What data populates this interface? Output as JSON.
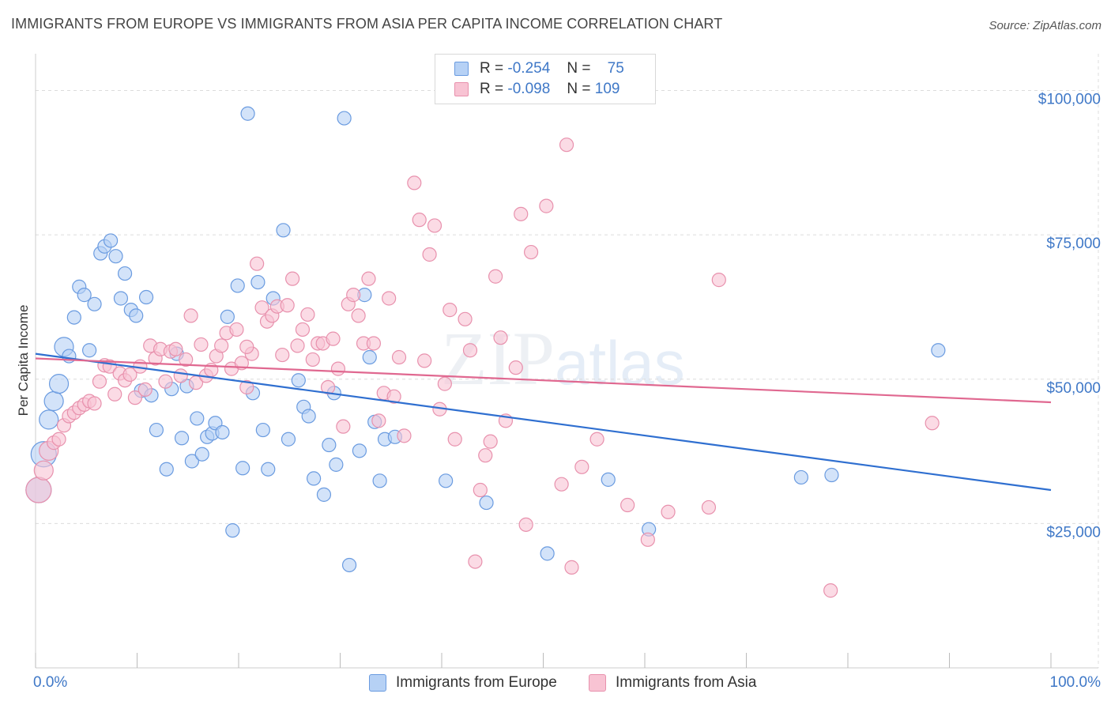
{
  "header": {
    "title": "IMMIGRANTS FROM EUROPE VS IMMIGRANTS FROM ASIA PER CAPITA INCOME CORRELATION CHART",
    "source": "Source: ZipAtlas.com"
  },
  "watermark": {
    "zip": "ZIP",
    "atlas": "atlas"
  },
  "legend": {
    "europe": {
      "r_label": "R =",
      "r_value": "-0.254",
      "n_label": "N =",
      "n_value": "75"
    },
    "asia": {
      "r_label": "R =",
      "r_value": "-0.098",
      "n_label": "N =",
      "n_value": "109"
    }
  },
  "colors": {
    "europe_fill": "#b6d1f5",
    "europe_stroke": "#6a9be0",
    "europe_line": "#2f6fd0",
    "asia_fill": "#f8c3d3",
    "asia_stroke": "#e891ad",
    "asia_line": "#e06890",
    "grid": "#dcdcdc",
    "axis_text": "#3f78c7"
  },
  "chart_data": {
    "type": "scatter",
    "title": "IMMIGRANTS FROM EUROPE VS IMMIGRANTS FROM ASIA PER CAPITA INCOME CORRELATION CHART",
    "xlabel": "",
    "ylabel": "Per Capita Income",
    "xlim": [
      0,
      100
    ],
    "ylim": [
      0,
      105000
    ],
    "x_tick_labels": [
      "0.0%",
      "100.0%"
    ],
    "y_ticks": [
      25000,
      50000,
      75000,
      100000
    ],
    "y_tick_labels": [
      "$25,000",
      "$50,000",
      "$75,000",
      "$100,000"
    ],
    "grid": true,
    "legend_position": "top-center",
    "series": [
      {
        "name": "Immigrants from Europe",
        "trend": {
          "x": [
            0,
            100
          ],
          "y": [
            54400,
            30800
          ]
        },
        "points": [
          {
            "x": 0.3,
            "y": 30800,
            "s": 3
          },
          {
            "x": 0.8,
            "y": 37000,
            "s": 3
          },
          {
            "x": 1.3,
            "y": 43000,
            "s": 2
          },
          {
            "x": 1.8,
            "y": 46200,
            "s": 2
          },
          {
            "x": 2.3,
            "y": 49200,
            "s": 2
          },
          {
            "x": 2.8,
            "y": 55600,
            "s": 2
          },
          {
            "x": 3.3,
            "y": 54000,
            "s": 1
          },
          {
            "x": 5.3,
            "y": 55000,
            "s": 1
          },
          {
            "x": 3.8,
            "y": 60700,
            "s": 1
          },
          {
            "x": 4.3,
            "y": 66000,
            "s": 1
          },
          {
            "x": 4.8,
            "y": 64600,
            "s": 1
          },
          {
            "x": 5.8,
            "y": 63000,
            "s": 1
          },
          {
            "x": 6.4,
            "y": 71800,
            "s": 1
          },
          {
            "x": 6.8,
            "y": 73000,
            "s": 1
          },
          {
            "x": 7.4,
            "y": 74000,
            "s": 1
          },
          {
            "x": 7.9,
            "y": 71300,
            "s": 1
          },
          {
            "x": 8.4,
            "y": 64000,
            "s": 1
          },
          {
            "x": 8.8,
            "y": 68300,
            "s": 1
          },
          {
            "x": 9.4,
            "y": 62000,
            "s": 1
          },
          {
            "x": 9.9,
            "y": 61000,
            "s": 1
          },
          {
            "x": 10.4,
            "y": 48000,
            "s": 1
          },
          {
            "x": 10.9,
            "y": 64200,
            "s": 1
          },
          {
            "x": 11.4,
            "y": 47200,
            "s": 1
          },
          {
            "x": 11.9,
            "y": 41200,
            "s": 1
          },
          {
            "x": 12.9,
            "y": 34400,
            "s": 1
          },
          {
            "x": 13.4,
            "y": 48300,
            "s": 1
          },
          {
            "x": 13.9,
            "y": 54400,
            "s": 1
          },
          {
            "x": 14.4,
            "y": 39800,
            "s": 1
          },
          {
            "x": 14.9,
            "y": 48800,
            "s": 1
          },
          {
            "x": 15.4,
            "y": 35800,
            "s": 1
          },
          {
            "x": 15.9,
            "y": 43200,
            "s": 1
          },
          {
            "x": 16.4,
            "y": 37000,
            "s": 1
          },
          {
            "x": 16.9,
            "y": 40000,
            "s": 1
          },
          {
            "x": 17.4,
            "y": 40600,
            "s": 1
          },
          {
            "x": 17.7,
            "y": 42400,
            "s": 1
          },
          {
            "x": 18.4,
            "y": 40800,
            "s": 1
          },
          {
            "x": 18.9,
            "y": 60800,
            "s": 1
          },
          {
            "x": 19.4,
            "y": 23800,
            "s": 1
          },
          {
            "x": 19.9,
            "y": 66200,
            "s": 1
          },
          {
            "x": 20.4,
            "y": 34600,
            "s": 1
          },
          {
            "x": 20.9,
            "y": 96000,
            "s": 1
          },
          {
            "x": 21.4,
            "y": 47600,
            "s": 1
          },
          {
            "x": 21.9,
            "y": 66800,
            "s": 1
          },
          {
            "x": 22.4,
            "y": 41200,
            "s": 1
          },
          {
            "x": 22.9,
            "y": 34400,
            "s": 1
          },
          {
            "x": 23.4,
            "y": 64000,
            "s": 1
          },
          {
            "x": 24.4,
            "y": 75800,
            "s": 1
          },
          {
            "x": 24.9,
            "y": 39600,
            "s": 1
          },
          {
            "x": 25.9,
            "y": 49800,
            "s": 1
          },
          {
            "x": 26.4,
            "y": 45200,
            "s": 1
          },
          {
            "x": 26.9,
            "y": 43600,
            "s": 1
          },
          {
            "x": 27.4,
            "y": 32800,
            "s": 1
          },
          {
            "x": 28.4,
            "y": 30000,
            "s": 1
          },
          {
            "x": 28.9,
            "y": 38600,
            "s": 1
          },
          {
            "x": 29.4,
            "y": 47600,
            "s": 1
          },
          {
            "x": 29.6,
            "y": 35200,
            "s": 1
          },
          {
            "x": 30.4,
            "y": 95200,
            "s": 1
          },
          {
            "x": 30.9,
            "y": 17800,
            "s": 1
          },
          {
            "x": 31.9,
            "y": 37600,
            "s": 1
          },
          {
            "x": 32.4,
            "y": 64600,
            "s": 1
          },
          {
            "x": 32.9,
            "y": 53800,
            "s": 1
          },
          {
            "x": 33.4,
            "y": 42600,
            "s": 1
          },
          {
            "x": 33.9,
            "y": 32400,
            "s": 1
          },
          {
            "x": 34.4,
            "y": 39600,
            "s": 1
          },
          {
            "x": 35.4,
            "y": 40000,
            "s": 1
          },
          {
            "x": 40.4,
            "y": 32400,
            "s": 1
          },
          {
            "x": 44.4,
            "y": 28600,
            "s": 1
          },
          {
            "x": 50.4,
            "y": 19800,
            "s": 1
          },
          {
            "x": 56.4,
            "y": 32600,
            "s": 1
          },
          {
            "x": 60.4,
            "y": 24000,
            "s": 1
          },
          {
            "x": 75.4,
            "y": 33000,
            "s": 1
          },
          {
            "x": 78.4,
            "y": 33400,
            "s": 1
          },
          {
            "x": 88.9,
            "y": 55000,
            "s": 1
          }
        ]
      },
      {
        "name": "Immigrants from Asia",
        "trend": {
          "x": [
            0,
            100
          ],
          "y": [
            53600,
            46000
          ]
        },
        "points": [
          {
            "x": 0.3,
            "y": 30800,
            "s": 3
          },
          {
            "x": 0.8,
            "y": 34200,
            "s": 2
          },
          {
            "x": 1.3,
            "y": 37600,
            "s": 2
          },
          {
            "x": 1.8,
            "y": 39000,
            "s": 1
          },
          {
            "x": 2.3,
            "y": 39600,
            "s": 1
          },
          {
            "x": 2.8,
            "y": 42000,
            "s": 1
          },
          {
            "x": 3.3,
            "y": 43600,
            "s": 1
          },
          {
            "x": 3.8,
            "y": 44200,
            "s": 1
          },
          {
            "x": 4.3,
            "y": 45000,
            "s": 1
          },
          {
            "x": 4.8,
            "y": 45600,
            "s": 1
          },
          {
            "x": 5.3,
            "y": 46200,
            "s": 1
          },
          {
            "x": 5.8,
            "y": 45800,
            "s": 1
          },
          {
            "x": 6.3,
            "y": 49600,
            "s": 1
          },
          {
            "x": 6.8,
            "y": 52400,
            "s": 1
          },
          {
            "x": 7.3,
            "y": 52200,
            "s": 1
          },
          {
            "x": 7.8,
            "y": 47400,
            "s": 1
          },
          {
            "x": 8.3,
            "y": 51000,
            "s": 1
          },
          {
            "x": 8.8,
            "y": 49800,
            "s": 1
          },
          {
            "x": 9.3,
            "y": 50800,
            "s": 1
          },
          {
            "x": 9.8,
            "y": 46800,
            "s": 1
          },
          {
            "x": 10.3,
            "y": 52200,
            "s": 1
          },
          {
            "x": 10.8,
            "y": 48200,
            "s": 1
          },
          {
            "x": 11.3,
            "y": 55800,
            "s": 1
          },
          {
            "x": 11.8,
            "y": 53600,
            "s": 1
          },
          {
            "x": 12.3,
            "y": 55200,
            "s": 1
          },
          {
            "x": 12.8,
            "y": 49600,
            "s": 1
          },
          {
            "x": 13.3,
            "y": 54800,
            "s": 1
          },
          {
            "x": 13.8,
            "y": 55200,
            "s": 1
          },
          {
            "x": 14.3,
            "y": 50600,
            "s": 1
          },
          {
            "x": 14.8,
            "y": 53400,
            "s": 1
          },
          {
            "x": 15.3,
            "y": 61000,
            "s": 1
          },
          {
            "x": 15.8,
            "y": 49400,
            "s": 1
          },
          {
            "x": 16.3,
            "y": 56000,
            "s": 1
          },
          {
            "x": 16.8,
            "y": 50600,
            "s": 1
          },
          {
            "x": 17.3,
            "y": 51600,
            "s": 1
          },
          {
            "x": 17.8,
            "y": 54000,
            "s": 1
          },
          {
            "x": 18.3,
            "y": 55800,
            "s": 1
          },
          {
            "x": 18.8,
            "y": 58000,
            "s": 1
          },
          {
            "x": 19.3,
            "y": 51800,
            "s": 1
          },
          {
            "x": 19.8,
            "y": 58600,
            "s": 1
          },
          {
            "x": 20.3,
            "y": 52800,
            "s": 1
          },
          {
            "x": 20.8,
            "y": 48600,
            "s": 1
          },
          {
            "x": 21.3,
            "y": 54400,
            "s": 1
          },
          {
            "x": 21.8,
            "y": 70000,
            "s": 1
          },
          {
            "x": 22.3,
            "y": 62400,
            "s": 1
          },
          {
            "x": 22.8,
            "y": 60000,
            "s": 1
          },
          {
            "x": 23.3,
            "y": 61000,
            "s": 1
          },
          {
            "x": 23.8,
            "y": 62600,
            "s": 1
          },
          {
            "x": 24.3,
            "y": 54200,
            "s": 1
          },
          {
            "x": 24.8,
            "y": 62800,
            "s": 1
          },
          {
            "x": 25.3,
            "y": 67400,
            "s": 1
          },
          {
            "x": 25.8,
            "y": 55800,
            "s": 1
          },
          {
            "x": 26.3,
            "y": 58600,
            "s": 1
          },
          {
            "x": 26.8,
            "y": 61200,
            "s": 1
          },
          {
            "x": 27.3,
            "y": 53400,
            "s": 1
          },
          {
            "x": 27.8,
            "y": 56200,
            "s": 1
          },
          {
            "x": 28.3,
            "y": 56200,
            "s": 1
          },
          {
            "x": 28.8,
            "y": 48600,
            "s": 1
          },
          {
            "x": 29.3,
            "y": 57000,
            "s": 1
          },
          {
            "x": 29.8,
            "y": 51800,
            "s": 1
          },
          {
            "x": 30.3,
            "y": 41800,
            "s": 1
          },
          {
            "x": 30.8,
            "y": 63000,
            "s": 1
          },
          {
            "x": 31.3,
            "y": 64600,
            "s": 1
          },
          {
            "x": 31.8,
            "y": 61000,
            "s": 1
          },
          {
            "x": 32.3,
            "y": 56200,
            "s": 1
          },
          {
            "x": 32.8,
            "y": 67400,
            "s": 1
          },
          {
            "x": 33.3,
            "y": 56200,
            "s": 1
          },
          {
            "x": 33.8,
            "y": 42800,
            "s": 1
          },
          {
            "x": 34.3,
            "y": 47600,
            "s": 1
          },
          {
            "x": 34.8,
            "y": 64000,
            "s": 1
          },
          {
            "x": 35.3,
            "y": 47000,
            "s": 1
          },
          {
            "x": 35.8,
            "y": 53800,
            "s": 1
          },
          {
            "x": 36.3,
            "y": 40200,
            "s": 1
          },
          {
            "x": 37.3,
            "y": 84000,
            "s": 1
          },
          {
            "x": 37.8,
            "y": 77600,
            "s": 1
          },
          {
            "x": 38.3,
            "y": 53200,
            "s": 1
          },
          {
            "x": 38.8,
            "y": 71600,
            "s": 1
          },
          {
            "x": 39.3,
            "y": 76600,
            "s": 1
          },
          {
            "x": 39.8,
            "y": 44800,
            "s": 1
          },
          {
            "x": 40.3,
            "y": 49200,
            "s": 1
          },
          {
            "x": 40.8,
            "y": 62000,
            "s": 1
          },
          {
            "x": 41.3,
            "y": 39600,
            "s": 1
          },
          {
            "x": 42.3,
            "y": 60400,
            "s": 1
          },
          {
            "x": 42.8,
            "y": 55000,
            "s": 1
          },
          {
            "x": 43.3,
            "y": 18400,
            "s": 1
          },
          {
            "x": 43.8,
            "y": 30800,
            "s": 1
          },
          {
            "x": 44.3,
            "y": 36800,
            "s": 1
          },
          {
            "x": 44.8,
            "y": 39200,
            "s": 1
          },
          {
            "x": 45.3,
            "y": 67800,
            "s": 1
          },
          {
            "x": 45.8,
            "y": 57200,
            "s": 1
          },
          {
            "x": 46.3,
            "y": 42800,
            "s": 1
          },
          {
            "x": 47.3,
            "y": 52000,
            "s": 1
          },
          {
            "x": 47.8,
            "y": 78600,
            "s": 1
          },
          {
            "x": 48.3,
            "y": 24800,
            "s": 1
          },
          {
            "x": 48.8,
            "y": 72000,
            "s": 1
          },
          {
            "x": 50.3,
            "y": 80000,
            "s": 1
          },
          {
            "x": 51.8,
            "y": 31800,
            "s": 1
          },
          {
            "x": 52.3,
            "y": 90600,
            "s": 1
          },
          {
            "x": 52.8,
            "y": 17400,
            "s": 1
          },
          {
            "x": 53.8,
            "y": 34800,
            "s": 1
          },
          {
            "x": 55.3,
            "y": 39600,
            "s": 1
          },
          {
            "x": 58.3,
            "y": 28200,
            "s": 1
          },
          {
            "x": 60.3,
            "y": 22200,
            "s": 1
          },
          {
            "x": 62.3,
            "y": 27000,
            "s": 1
          },
          {
            "x": 66.3,
            "y": 27800,
            "s": 1
          },
          {
            "x": 67.3,
            "y": 67200,
            "s": 1
          },
          {
            "x": 78.3,
            "y": 13400,
            "s": 1
          },
          {
            "x": 88.3,
            "y": 42400,
            "s": 1
          },
          {
            "x": 20.8,
            "y": 55600,
            "s": 1
          }
        ]
      }
    ]
  },
  "bottom_legend": {
    "europe_label": "Immigrants from Europe",
    "asia_label": "Immigrants from Asia"
  }
}
